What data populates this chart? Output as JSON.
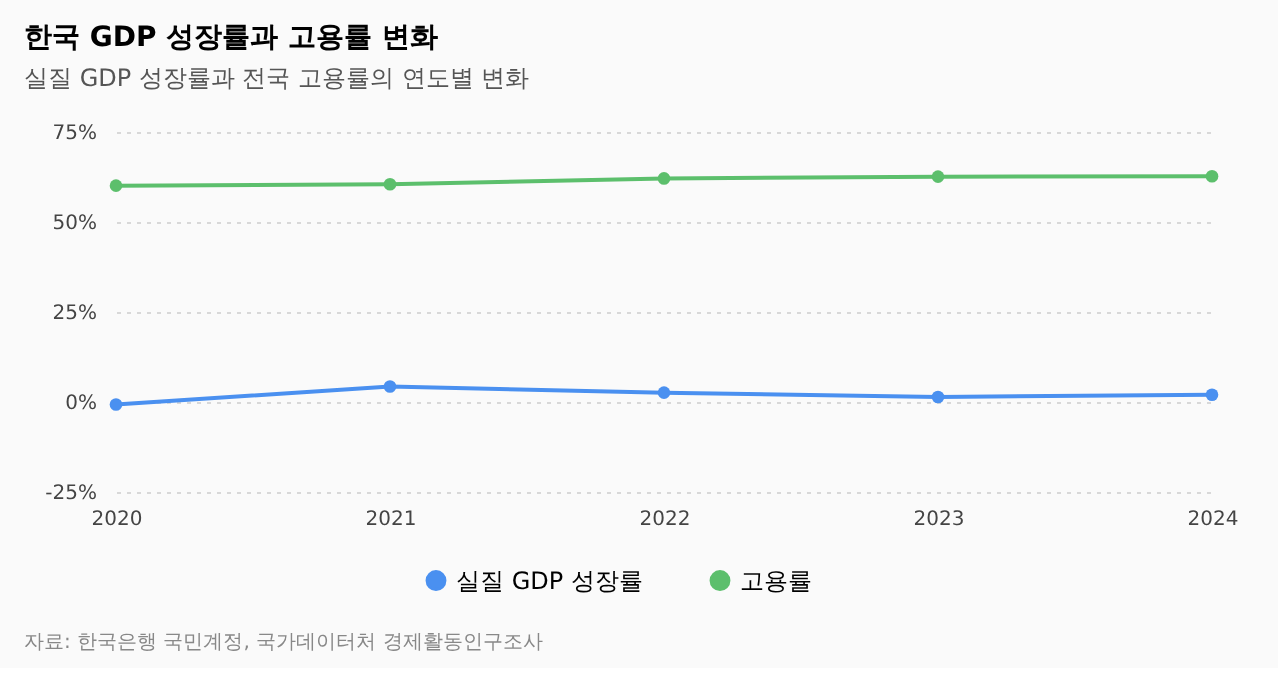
{
  "chart_data": {
    "type": "line",
    "title": "한국 GDP 성장률과 고용률 변화",
    "subtitle": "실질 GDP 성장률과 전국 고용률의 연도별 변화",
    "categories": [
      "2020",
      "2021",
      "2022",
      "2023",
      "2024"
    ],
    "series": [
      {
        "name": "실질 GDP 성장률",
        "color": "#4a90f0",
        "values": [
          -0.7,
          4.3,
          2.6,
          1.4,
          2.0
        ]
      },
      {
        "name": "고용률",
        "color": "#5cbf6c",
        "values": [
          60.1,
          60.5,
          62.1,
          62.6,
          62.7
        ]
      }
    ],
    "ylim": [
      -25,
      75
    ],
    "yticks": [
      {
        "value": -25,
        "label": "-25%"
      },
      {
        "value": 0,
        "label": "0%"
      },
      {
        "value": 25,
        "label": "25%"
      },
      {
        "value": 50,
        "label": "50%"
      },
      {
        "value": 75,
        "label": "75%"
      }
    ],
    "grid": "y",
    "legend": "bottom",
    "marker": "circle",
    "line_style": "solid",
    "annotations": [
      "자료: 한국은행 국민계정, 국가데이터처 경제활동인구조사"
    ]
  }
}
